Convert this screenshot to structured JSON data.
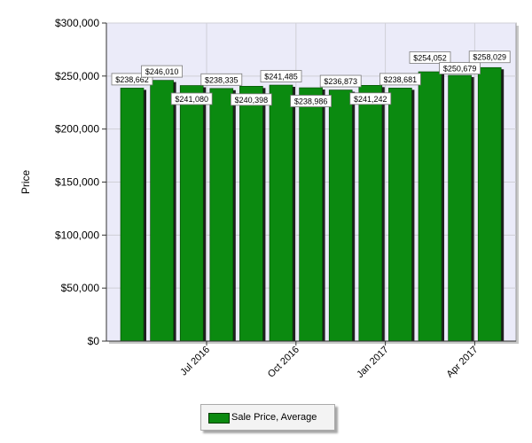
{
  "chart_data": {
    "type": "bar",
    "title": "",
    "ylabel": "Price",
    "ylim": [
      0,
      300000
    ],
    "yticks": [
      0,
      50000,
      100000,
      150000,
      200000,
      250000,
      300000
    ],
    "ytick_labels": [
      "$0",
      "$50,000",
      "$100,000",
      "$150,000",
      "$200,000",
      "$250,000",
      "$300,000"
    ],
    "xtick_labels": [
      "Jul 2016",
      "Oct 2016",
      "Jan 2017",
      "Apr 2017"
    ],
    "grid": true,
    "legend_position": "bottom",
    "series": [
      {
        "name": "Sale Price, Average",
        "color": "#0b8a10",
        "values": [
          238662,
          246010,
          241080,
          238335,
          240398,
          241485,
          238986,
          236873,
          241242,
          238681,
          254052,
          250679,
          258029
        ]
      }
    ],
    "data_labels": [
      "$238,662",
      "$246,010",
      "$241,080",
      "$238,335",
      "$240,398",
      "$241,485",
      "$238,986",
      "$236,873",
      "$241,242",
      "$238,681",
      "$254,052",
      "$250,679",
      "$258,029"
    ]
  }
}
